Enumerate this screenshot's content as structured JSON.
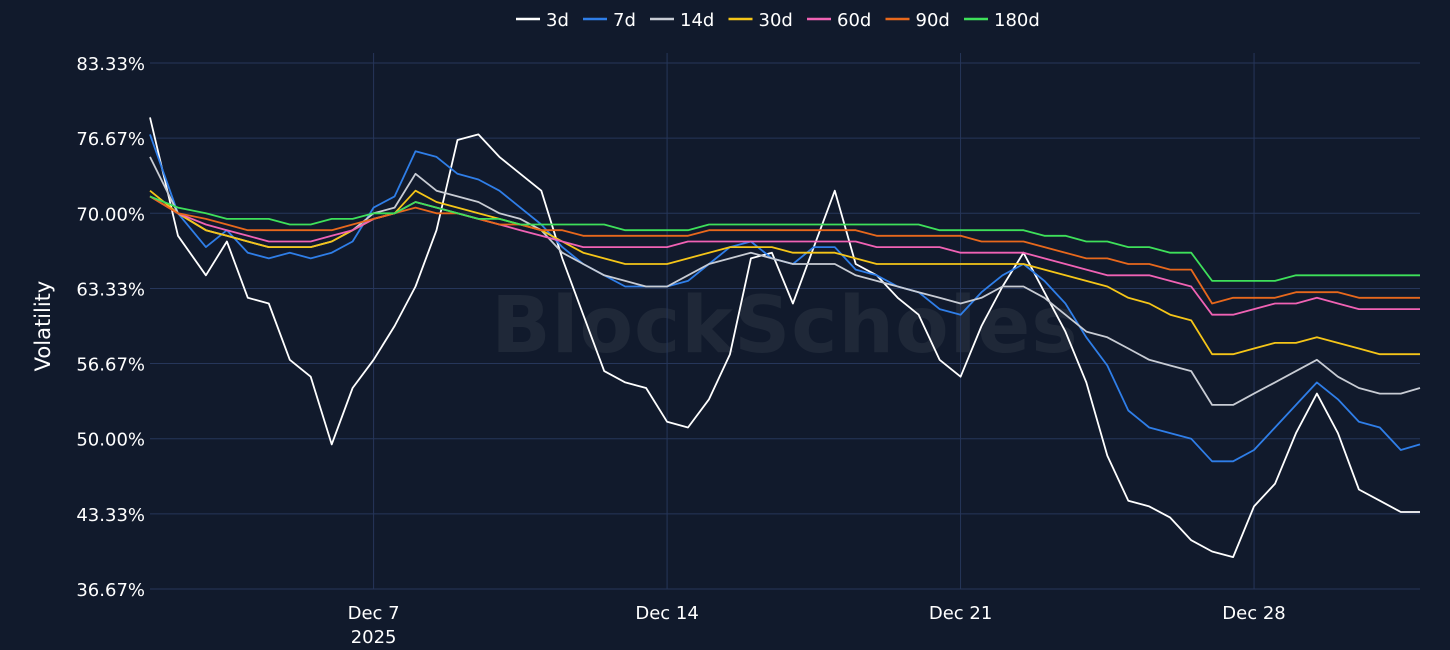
{
  "watermark": "BlockScholes",
  "colors": {
    "background": "#111a2c",
    "grid": "#26365a"
  },
  "chart_data": {
    "type": "line",
    "ylabel": "Volatility",
    "y_unit": "%",
    "y_ticks": [
      "83.33%",
      "76.67%",
      "70.00%",
      "63.33%",
      "56.67%",
      "50.00%",
      "43.33%",
      "36.67%"
    ],
    "ylim": [
      36.67,
      83.33
    ],
    "x_ticks": [
      {
        "label": "Dec 7",
        "sublabel": "2025",
        "date": "2025-12-07"
      },
      {
        "label": "Dec 14",
        "sublabel": "",
        "date": "2025-12-14"
      },
      {
        "label": "Dec 21",
        "sublabel": "",
        "date": "2025-12-21"
      },
      {
        "label": "Dec 28",
        "sublabel": "",
        "date": "2025-12-28"
      }
    ],
    "xlim": [
      "2025-12-01T16:00",
      "2025-12-31T23:00"
    ],
    "x": [
      "2025-12-01T16:00",
      "2025-12-02T08:00",
      "2025-12-03T00:00",
      "2025-12-03T12:00",
      "2025-12-04T00:00",
      "2025-12-04T12:00",
      "2025-12-05T00:00",
      "2025-12-05T12:00",
      "2025-12-06T00:00",
      "2025-12-06T12:00",
      "2025-12-07T00:00",
      "2025-12-07T12:00",
      "2025-12-08T00:00",
      "2025-12-08T12:00",
      "2025-12-09T00:00",
      "2025-12-09T12:00",
      "2025-12-10T00:00",
      "2025-12-10T12:00",
      "2025-12-11T00:00",
      "2025-12-11T12:00",
      "2025-12-12T00:00",
      "2025-12-12T12:00",
      "2025-12-13T00:00",
      "2025-12-13T12:00",
      "2025-12-14T00:00",
      "2025-12-14T12:00",
      "2025-12-15T00:00",
      "2025-12-15T12:00",
      "2025-12-16T00:00",
      "2025-12-16T12:00",
      "2025-12-17T00:00",
      "2025-12-17T12:00",
      "2025-12-18T00:00",
      "2025-12-18T12:00",
      "2025-12-19T00:00",
      "2025-12-19T12:00",
      "2025-12-20T00:00",
      "2025-12-20T12:00",
      "2025-12-21T00:00",
      "2025-12-21T12:00",
      "2025-12-22T00:00",
      "2025-12-22T12:00",
      "2025-12-23T00:00",
      "2025-12-23T12:00",
      "2025-12-24T00:00",
      "2025-12-24T12:00",
      "2025-12-25T00:00",
      "2025-12-25T12:00",
      "2025-12-26T00:00",
      "2025-12-26T12:00",
      "2025-12-27T00:00",
      "2025-12-27T12:00",
      "2025-12-28T00:00",
      "2025-12-28T12:00",
      "2025-12-29T00:00",
      "2025-12-29T12:00",
      "2025-12-30T00:00",
      "2025-12-30T12:00",
      "2025-12-31T00:00",
      "2025-12-31T12:00",
      "2025-12-31T23:00"
    ],
    "legend_position": "top-center",
    "grid": true,
    "series": [
      {
        "name": "3d",
        "color": "#ffffff",
        "values": [
          78.5,
          68.0,
          64.5,
          67.5,
          62.5,
          62.0,
          57.0,
          55.5,
          49.5,
          54.5,
          57.0,
          60.0,
          63.5,
          68.5,
          76.5,
          77.0,
          75.0,
          73.5,
          72.0,
          66.0,
          61.0,
          56.0,
          55.0,
          54.5,
          51.5,
          51.0,
          53.5,
          57.5,
          66.0,
          66.5,
          62.0,
          67.0,
          72.0,
          65.5,
          64.5,
          62.5,
          61.0,
          57.0,
          55.5,
          60.0,
          63.5,
          66.5,
          63.0,
          59.5,
          55.0,
          48.5,
          44.5,
          44.0,
          43.0,
          41.0,
          40.0,
          39.5,
          44.0,
          46.0,
          50.5,
          54.0,
          50.5,
          45.5,
          44.5,
          43.5,
          43.5
        ]
      },
      {
        "name": "7d",
        "color": "#2f7ee8",
        "values": [
          77.0,
          70.0,
          67.0,
          68.5,
          66.5,
          66.0,
          66.5,
          66.0,
          66.5,
          67.5,
          70.5,
          71.5,
          75.5,
          75.0,
          73.5,
          73.0,
          72.0,
          70.5,
          69.0,
          67.0,
          65.5,
          64.5,
          63.5,
          63.5,
          63.5,
          64.0,
          65.5,
          67.0,
          67.5,
          66.0,
          65.5,
          67.0,
          67.0,
          65.0,
          64.5,
          63.5,
          63.0,
          61.5,
          61.0,
          63.0,
          64.5,
          65.5,
          64.0,
          62.0,
          59.0,
          56.5,
          52.5,
          51.0,
          50.5,
          50.0,
          48.0,
          48.0,
          49.0,
          51.0,
          53.0,
          55.0,
          53.5,
          51.5,
          51.0,
          49.0,
          49.5
        ]
      },
      {
        "name": "14d",
        "color": "#c8ccd4",
        "values": [
          75.0,
          70.0,
          68.5,
          68.0,
          67.5,
          67.0,
          67.0,
          67.0,
          67.5,
          68.5,
          70.0,
          70.5,
          73.5,
          72.0,
          71.5,
          71.0,
          70.0,
          69.5,
          68.5,
          66.5,
          65.5,
          64.5,
          64.0,
          63.5,
          63.5,
          64.5,
          65.5,
          66.0,
          66.5,
          66.0,
          65.5,
          65.5,
          65.5,
          64.5,
          64.0,
          63.5,
          63.0,
          62.5,
          62.0,
          62.5,
          63.5,
          63.5,
          62.5,
          61.0,
          59.5,
          59.0,
          58.0,
          57.0,
          56.5,
          56.0,
          53.0,
          53.0,
          54.0,
          55.0,
          56.0,
          57.0,
          55.5,
          54.5,
          54.0,
          54.0,
          54.5
        ]
      },
      {
        "name": "30d",
        "color": "#f5c518",
        "values": [
          72.0,
          70.0,
          68.5,
          68.0,
          67.5,
          67.0,
          67.0,
          67.0,
          67.5,
          68.5,
          69.5,
          70.0,
          72.0,
          71.0,
          70.5,
          70.0,
          69.5,
          69.0,
          68.5,
          67.5,
          66.5,
          66.0,
          65.5,
          65.5,
          65.5,
          66.0,
          66.5,
          67.0,
          67.0,
          67.0,
          66.5,
          66.5,
          66.5,
          66.0,
          65.5,
          65.5,
          65.5,
          65.5,
          65.5,
          65.5,
          65.5,
          65.5,
          65.0,
          64.5,
          64.0,
          63.5,
          62.5,
          62.0,
          61.0,
          60.5,
          57.5,
          57.5,
          58.0,
          58.5,
          58.5,
          59.0,
          58.5,
          58.0,
          57.5,
          57.5,
          57.5
        ]
      },
      {
        "name": "60d",
        "color": "#f062b4",
        "values": [
          71.5,
          70.0,
          69.0,
          68.5,
          68.0,
          67.5,
          67.5,
          67.5,
          68.0,
          68.5,
          69.5,
          70.0,
          71.0,
          70.5,
          70.0,
          69.5,
          69.0,
          68.5,
          68.0,
          67.5,
          67.0,
          67.0,
          67.0,
          67.0,
          67.0,
          67.5,
          67.5,
          67.5,
          67.5,
          67.5,
          67.5,
          67.5,
          67.5,
          67.5,
          67.0,
          67.0,
          67.0,
          67.0,
          66.5,
          66.5,
          66.5,
          66.5,
          66.0,
          65.5,
          65.0,
          64.5,
          64.5,
          64.5,
          64.0,
          63.5,
          61.0,
          61.0,
          61.5,
          62.0,
          62.0,
          62.5,
          62.0,
          61.5,
          61.5,
          61.5,
          61.5
        ]
      },
      {
        "name": "90d",
        "color": "#e8681c",
        "values": [
          71.5,
          70.0,
          69.5,
          69.0,
          68.5,
          68.5,
          68.5,
          68.5,
          68.5,
          69.0,
          69.5,
          70.0,
          70.5,
          70.0,
          70.0,
          69.5,
          69.0,
          69.0,
          68.5,
          68.5,
          68.0,
          68.0,
          68.0,
          68.0,
          68.0,
          68.0,
          68.5,
          68.5,
          68.5,
          68.5,
          68.5,
          68.5,
          68.5,
          68.5,
          68.0,
          68.0,
          68.0,
          68.0,
          68.0,
          67.5,
          67.5,
          67.5,
          67.0,
          66.5,
          66.0,
          66.0,
          65.5,
          65.5,
          65.0,
          65.0,
          62.0,
          62.5,
          62.5,
          62.5,
          63.0,
          63.0,
          63.0,
          62.5,
          62.5,
          62.5,
          62.5
        ]
      },
      {
        "name": "180d",
        "color": "#3ee05a",
        "values": [
          71.5,
          70.5,
          70.0,
          69.5,
          69.5,
          69.5,
          69.0,
          69.0,
          69.5,
          69.5,
          70.0,
          70.0,
          71.0,
          70.5,
          70.0,
          69.5,
          69.5,
          69.0,
          69.0,
          69.0,
          69.0,
          69.0,
          68.5,
          68.5,
          68.5,
          68.5,
          69.0,
          69.0,
          69.0,
          69.0,
          69.0,
          69.0,
          69.0,
          69.0,
          69.0,
          69.0,
          69.0,
          68.5,
          68.5,
          68.5,
          68.5,
          68.5,
          68.0,
          68.0,
          67.5,
          67.5,
          67.0,
          67.0,
          66.5,
          66.5,
          64.0,
          64.0,
          64.0,
          64.0,
          64.5,
          64.5,
          64.5,
          64.5,
          64.5,
          64.5,
          64.5
        ]
      }
    ]
  }
}
